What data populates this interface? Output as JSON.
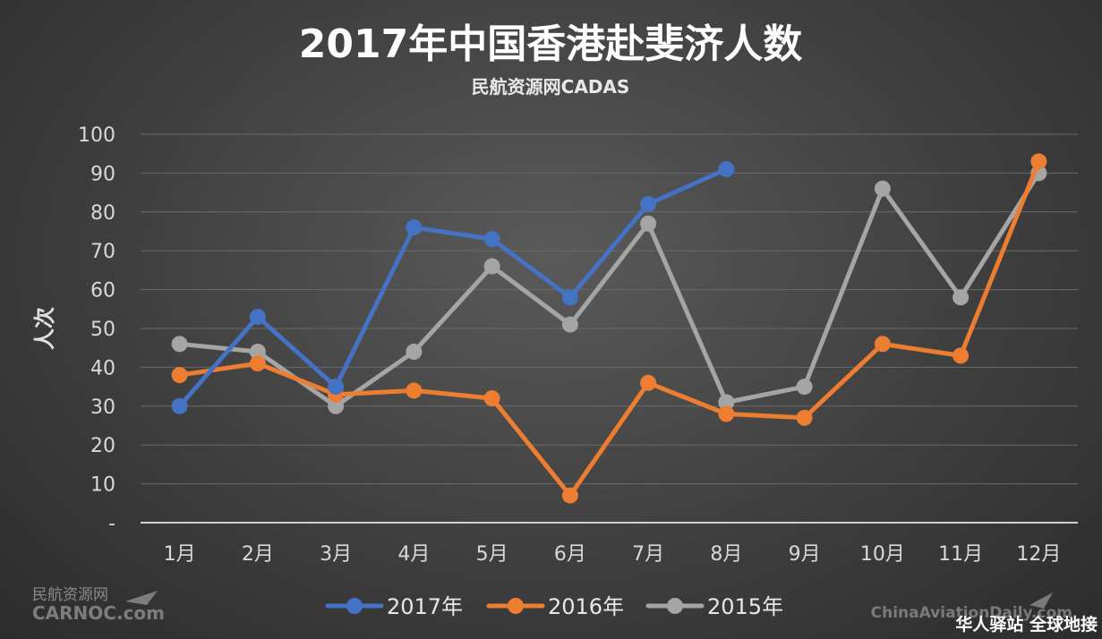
{
  "chart_data": {
    "type": "line",
    "title": "2017年中国香港赴斐济人数",
    "subtitle": "民航资源网CADAS",
    "ylabel": "人次",
    "xlabel": "",
    "categories": [
      "1月",
      "2月",
      "3月",
      "4月",
      "5月",
      "6月",
      "7月",
      "8月",
      "9月",
      "10月",
      "11月",
      "12月"
    ],
    "ylim": [
      0,
      100
    ],
    "yticks": [
      "-",
      "10",
      "20",
      "30",
      "40",
      "50",
      "60",
      "70",
      "80",
      "90",
      "100"
    ],
    "grid": true,
    "legend_position": "bottom",
    "series": [
      {
        "name": "2017年",
        "color": "#4472c4",
        "values": [
          30,
          53,
          35,
          76,
          73,
          58,
          82,
          91,
          null,
          null,
          null,
          null
        ]
      },
      {
        "name": "2016年",
        "color": "#ed7d31",
        "values": [
          38,
          41,
          33,
          34,
          32,
          7,
          36,
          28,
          27,
          46,
          43,
          93
        ]
      },
      {
        "name": "2015年",
        "color": "#a5a5a5",
        "values": [
          46,
          44,
          30,
          44,
          66,
          51,
          77,
          31,
          35,
          86,
          58,
          90
        ]
      }
    ]
  },
  "watermarks": {
    "left_cn": "民航资源网",
    "left_en": "CARNOC.com",
    "right_en": "ChinaAviationDaily.com",
    "right_cn": "华人驿站 全球地接"
  }
}
